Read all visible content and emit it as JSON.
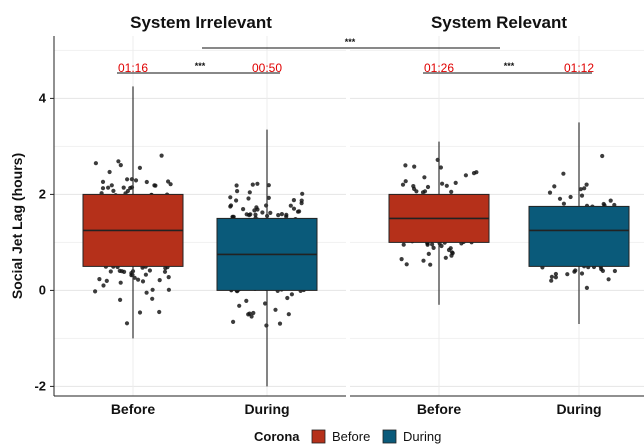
{
  "chart_data": {
    "type": "box",
    "ylabel": "Social Jet Lag (hours)",
    "xlabel": "",
    "ylim": [
      -2.2,
      5.3
    ],
    "yticks": [
      "-2",
      "0",
      "2",
      "4"
    ],
    "grid": true,
    "legend": {
      "title": "Corona",
      "position": "bottom",
      "entries": [
        {
          "label": "Before",
          "color": "#b5301a"
        },
        {
          "label": "During",
          "color": "#0a5a7a"
        }
      ]
    },
    "facets": [
      {
        "title": "System Irrelevant",
        "groups": [
          {
            "category": "Before",
            "series": "Before",
            "q1": 0.5,
            "median": 1.25,
            "q3": 2.0,
            "whisker_low": -1.0,
            "whisker_high": 4.25,
            "annotation": "01:16"
          },
          {
            "category": "During",
            "series": "During",
            "q1": 0.0,
            "median": 0.75,
            "q3": 1.5,
            "whisker_low": -2.0,
            "whisker_high": 3.35,
            "annotation": "00:50"
          }
        ],
        "significance": "***"
      },
      {
        "title": "System Relevant",
        "groups": [
          {
            "category": "Before",
            "series": "Before",
            "q1": 1.0,
            "median": 1.5,
            "q3": 2.0,
            "whisker_low": -0.3,
            "whisker_high": 3.1,
            "annotation": "01:26"
          },
          {
            "category": "During",
            "series": "During",
            "q1": 0.5,
            "median": 1.25,
            "q3": 1.75,
            "whisker_low": -0.7,
            "whisker_high": 3.5,
            "annotation": "01:12"
          }
        ],
        "significance": "***"
      }
    ],
    "between_facet_significance": "***"
  }
}
